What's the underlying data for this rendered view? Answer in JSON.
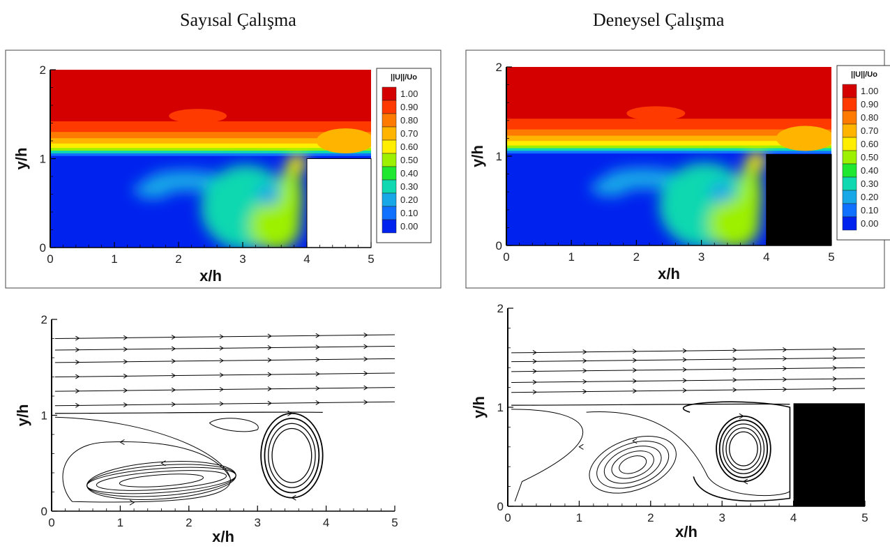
{
  "titles": {
    "left": "Sayısal Çalışma",
    "right": "Deneysel Çalışma"
  },
  "colorbar": {
    "title": "||U||/Uo",
    "levels": [
      "1.00",
      "0.90",
      "0.80",
      "0.70",
      "0.60",
      "0.50",
      "0.40",
      "0.30",
      "0.20",
      "0.10",
      "0.00"
    ],
    "colors": [
      "#d40000",
      "#ff3a00",
      "#ff7a00",
      "#ffb400",
      "#ffee00",
      "#9cf000",
      "#20e830",
      "#10d8b0",
      "#18a8e8",
      "#1070ff",
      "#0022ee"
    ]
  },
  "chart_data": [
    {
      "type": "heatmap",
      "variable": "||U||/Uo",
      "xlabel": "x/h",
      "ylabel": "y/h",
      "xlim": [
        0,
        5
      ],
      "ylim": [
        0,
        2
      ],
      "xticks": [
        "0",
        "1",
        "2",
        "3",
        "4",
        "5"
      ],
      "yticks": [
        "0",
        "1",
        "2"
      ],
      "obstacle": {
        "x": [
          4,
          5
        ],
        "y": [
          0,
          1
        ],
        "fill": "#ffffff"
      },
      "recirculation_core": {
        "x": 3.4,
        "y": 0.6,
        "value": 0.25
      },
      "upper_stream_value": 1.0,
      "cavity_value": 0.0
    },
    {
      "type": "heatmap",
      "variable": "||U||/Uo",
      "xlabel": "x/h",
      "ylabel": "y/h",
      "xlim": [
        0,
        5
      ],
      "ylim": [
        0,
        2
      ],
      "xticks": [
        "0",
        "1",
        "2",
        "3",
        "4",
        "5"
      ],
      "yticks": [
        "0",
        "1",
        "2"
      ],
      "obstacle": {
        "x": [
          4,
          5
        ],
        "y": [
          0,
          1.02
        ],
        "fill": "#000000"
      },
      "recirculation_core": {
        "x": 3.3,
        "y": 0.6,
        "value": 0.25
      },
      "upper_stream_value": 1.0,
      "cavity_value": 0.0
    },
    {
      "type": "streamline",
      "xlabel": "x/h",
      "ylabel": "y/h",
      "xlim": [
        0,
        5
      ],
      "ylim": [
        0,
        2
      ],
      "xticks": [
        "0",
        "1",
        "2",
        "3",
        "4",
        "5"
      ],
      "yticks": [
        "0",
        "1",
        "2"
      ],
      "freestream_y": [
        1.1,
        1.25,
        1.4,
        1.55,
        1.68,
        1.8
      ],
      "vortices": [
        {
          "cx": 3.5,
          "cy": 0.58,
          "rx": 0.45,
          "ry": 0.44,
          "rings": 4,
          "sense": "clockwise"
        },
        {
          "cx": 1.6,
          "cy": 0.32,
          "rx": 0.68,
          "ry": 0.06,
          "rings": 5,
          "sense": "counter-clockwise"
        }
      ],
      "cavity_end": 4
    },
    {
      "type": "streamline",
      "xlabel": "x/h",
      "ylabel": "y/h",
      "xlim": [
        0,
        5
      ],
      "ylim": [
        0,
        2
      ],
      "xticks": [
        "0",
        "1",
        "2",
        "3",
        "4",
        "5"
      ],
      "yticks": [
        "0",
        "1",
        "2"
      ],
      "freestream_y": [
        1.15,
        1.25,
        1.36,
        1.46,
        1.55
      ],
      "vortices": [
        {
          "cx": 3.3,
          "cy": 0.58,
          "rx": 0.38,
          "ry": 0.33,
          "rings": 5,
          "sense": "clockwise"
        },
        {
          "cx": 1.75,
          "cy": 0.42,
          "rx": 0.22,
          "ry": 0.08,
          "rings": 5,
          "sense": "counter-clockwise"
        }
      ],
      "obstacle": {
        "x": [
          4,
          5
        ],
        "y": [
          0,
          1.04
        ],
        "fill": "#000000"
      }
    }
  ]
}
